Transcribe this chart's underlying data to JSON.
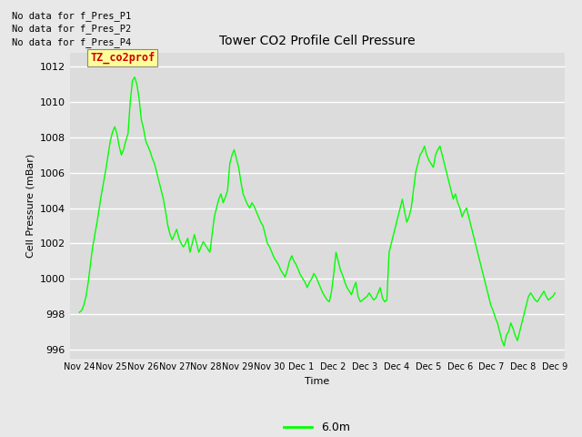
{
  "title": "Tower CO2 Profile Cell Pressure",
  "ylabel": "Cell Pressure (mBar)",
  "xlabel": "Time",
  "legend_label": "6.0m",
  "line_color": "#00ff00",
  "bg_color": "#dcdcdc",
  "fig_color": "#e8e8e8",
  "ylim": [
    995.5,
    1012.8
  ],
  "yticks": [
    996,
    998,
    1000,
    1002,
    1004,
    1006,
    1008,
    1010,
    1012
  ],
  "xtick_labels": [
    "Nov 24",
    "Nov 25",
    "Nov 26",
    "Nov 27",
    "Nov 28",
    "Nov 29",
    "Nov 30",
    "Dec 1",
    "Dec 2",
    "Dec 3",
    "Dec 4",
    "Dec 5",
    "Dec 6",
    "Dec 7",
    "Dec 8",
    "Dec 9"
  ],
  "no_data_labels": [
    "No data for f_Pres_P1",
    "No data for f_Pres_P2",
    "No data for f_Pres_P4"
  ],
  "tz_label": "TZ_co2prof",
  "tz_bg": "#ffff99",
  "tz_fg": "#cc0000",
  "pressure_data": [
    998.1,
    998.2,
    998.5,
    999.0,
    999.8,
    1000.8,
    1001.8,
    1002.5,
    1003.2,
    1004.0,
    1004.8,
    1005.5,
    1006.2,
    1007.0,
    1007.8,
    1008.3,
    1008.6,
    1008.2,
    1007.5,
    1007.0,
    1007.3,
    1007.8,
    1008.2,
    1010.0,
    1011.2,
    1011.4,
    1011.0,
    1010.2,
    1009.0,
    1008.5,
    1007.8,
    1007.5,
    1007.2,
    1006.8,
    1006.5,
    1006.0,
    1005.5,
    1005.0,
    1004.5,
    1003.8,
    1003.0,
    1002.5,
    1002.2,
    1002.5,
    1002.8,
    1002.3,
    1002.0,
    1001.8,
    1002.0,
    1002.3,
    1001.5,
    1002.0,
    1002.5,
    1002.0,
    1001.5,
    1001.8,
    1002.1,
    1001.9,
    1001.7,
    1001.5,
    1002.5,
    1003.5,
    1004.0,
    1004.5,
    1004.8,
    1004.3,
    1004.6,
    1005.0,
    1006.5,
    1007.0,
    1007.3,
    1006.8,
    1006.3,
    1005.5,
    1004.8,
    1004.5,
    1004.2,
    1004.0,
    1004.3,
    1004.1,
    1003.8,
    1003.5,
    1003.2,
    1003.0,
    1002.5,
    1002.0,
    1001.8,
    1001.5,
    1001.2,
    1001.0,
    1000.8,
    1000.5,
    1000.3,
    1000.1,
    1000.5,
    1001.0,
    1001.3,
    1001.0,
    1000.8,
    1000.5,
    1000.2,
    1000.0,
    999.8,
    999.5,
    999.8,
    1000.0,
    1000.3,
    1000.1,
    999.8,
    999.5,
    999.2,
    999.0,
    998.8,
    998.7,
    999.3,
    1000.3,
    1001.5,
    1001.0,
    1000.5,
    1000.2,
    999.8,
    999.5,
    999.3,
    999.1,
    999.5,
    999.8,
    999.0,
    998.7,
    998.8,
    998.9,
    999.0,
    999.2,
    999.0,
    998.8,
    998.9,
    999.2,
    999.5,
    998.9,
    998.7,
    998.8,
    1001.5,
    1002.0,
    1002.5,
    1003.0,
    1003.5,
    1004.0,
    1004.5,
    1003.8,
    1003.2,
    1003.5,
    1004.0,
    1005.0,
    1006.0,
    1006.5,
    1007.0,
    1007.2,
    1007.5,
    1007.0,
    1006.7,
    1006.5,
    1006.3,
    1007.0,
    1007.3,
    1007.5,
    1007.0,
    1006.5,
    1006.0,
    1005.5,
    1005.0,
    1004.5,
    1004.8,
    1004.3,
    1004.0,
    1003.5,
    1003.8,
    1004.0,
    1003.5,
    1003.0,
    1002.5,
    1002.0,
    1001.5,
    1001.0,
    1000.5,
    1000.0,
    999.5,
    999.0,
    998.5,
    998.2,
    997.8,
    997.5,
    997.0,
    996.5,
    996.2,
    996.8,
    997.0,
    997.5,
    997.2,
    996.8,
    996.5,
    997.0,
    997.5,
    998.0,
    998.5,
    999.0,
    999.2,
    999.0,
    998.8,
    998.7,
    998.9,
    999.1,
    999.3,
    999.0,
    998.8,
    998.9,
    999.0,
    999.2
  ]
}
